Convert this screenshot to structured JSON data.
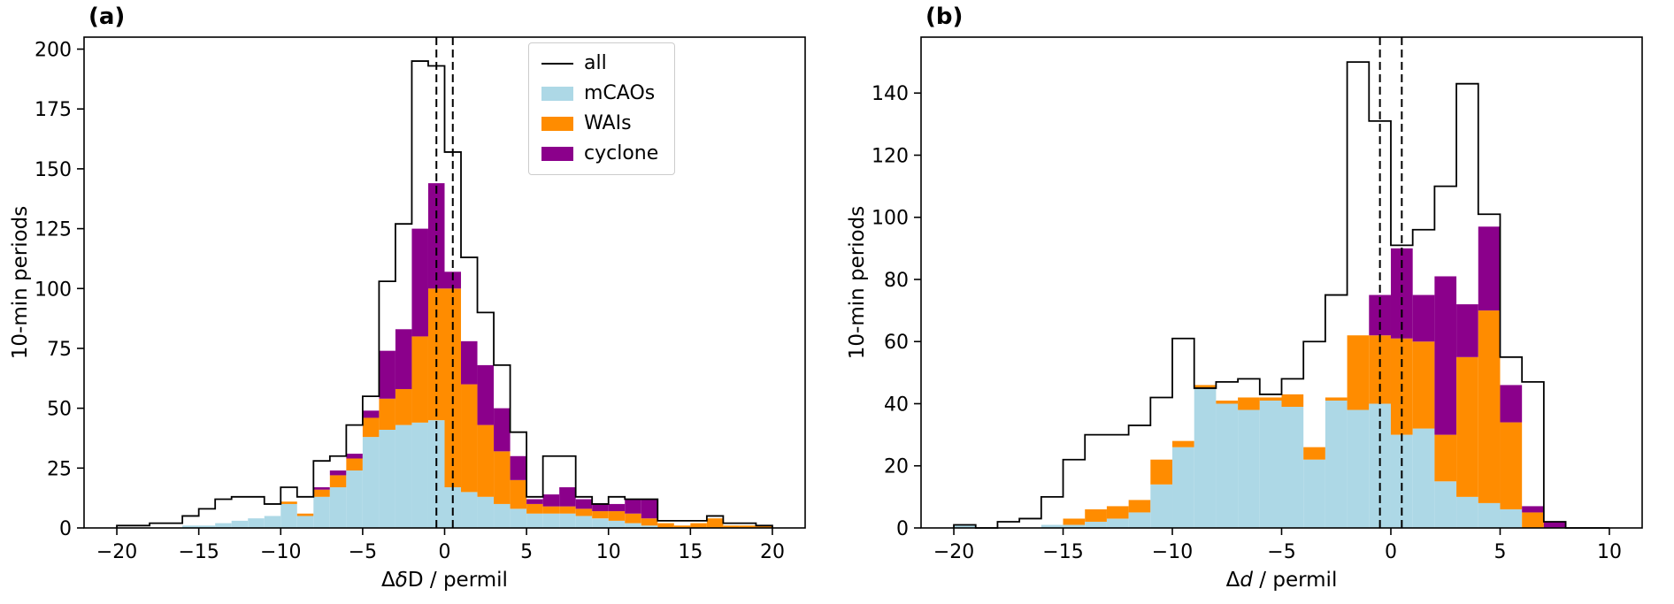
{
  "figure": {
    "background": "#ffffff"
  },
  "legend": {
    "entries": [
      {
        "label": "all",
        "type": "line",
        "color": "#000000"
      },
      {
        "label": "mCAOs",
        "type": "patch",
        "color": "#add8e6"
      },
      {
        "label": "WAIs",
        "type": "patch",
        "color": "#ff8c00"
      },
      {
        "label": "cyclone",
        "type": "patch",
        "color": "#8b008b"
      }
    ]
  },
  "chart_data": [
    {
      "type": "bar",
      "variant": "stacked_step_histogram",
      "panel_label": "(a)",
      "xlabel": "ΔδD / permil",
      "xlabel_parts": [
        {
          "text": "Δ"
        },
        {
          "text": "δ",
          "italic": true
        },
        {
          "text": "D / permil"
        }
      ],
      "ylabel": "10-min periods",
      "xlim": [
        -22,
        22
      ],
      "ylim": [
        0,
        205
      ],
      "xticks": [
        -20,
        -15,
        -10,
        -5,
        0,
        5,
        10,
        15,
        20
      ],
      "yticks": [
        0,
        25,
        50,
        75,
        100,
        125,
        150,
        175,
        200
      ],
      "bin_start": -20,
      "bin_width": 1,
      "dashed_lines_x": [
        -0.5,
        0.5
      ],
      "outline_series": {
        "name": "all",
        "color": "#000000",
        "values": [
          1,
          1,
          2,
          2,
          5,
          8,
          12,
          13,
          13,
          10,
          17,
          13,
          28,
          30,
          43,
          55,
          103,
          127,
          195,
          193,
          157,
          113,
          90,
          68,
          40,
          13,
          30,
          30,
          13,
          10,
          13,
          12,
          12,
          3,
          3,
          3,
          5,
          2,
          2,
          1
        ]
      },
      "stacked_series": [
        {
          "name": "mCAOs",
          "color": "#add8e6",
          "values": [
            0,
            0,
            0,
            0,
            1,
            1,
            2,
            3,
            4,
            5,
            10,
            5,
            13,
            17,
            24,
            38,
            41,
            43,
            44,
            45,
            17,
            15,
            13,
            10,
            8,
            6,
            6,
            6,
            5,
            4,
            3,
            2,
            1,
            0,
            0,
            0,
            0,
            0,
            0,
            0
          ]
        },
        {
          "name": "WAIs",
          "color": "#ff8c00",
          "values": [
            0,
            0,
            0,
            0,
            0,
            0,
            0,
            0,
            0,
            0,
            1,
            1,
            3,
            5,
            5,
            8,
            13,
            15,
            36,
            55,
            83,
            45,
            30,
            22,
            12,
            4,
            3,
            3,
            3,
            3,
            4,
            4,
            3,
            2,
            1,
            2,
            4,
            1,
            1,
            1
          ]
        },
        {
          "name": "cyclone",
          "color": "#8b008b",
          "values": [
            0,
            0,
            0,
            0,
            0,
            0,
            0,
            0,
            0,
            0,
            0,
            0,
            1,
            2,
            2,
            3,
            20,
            25,
            45,
            44,
            7,
            18,
            25,
            18,
            10,
            2,
            5,
            8,
            4,
            3,
            3,
            6,
            8,
            0,
            0,
            0,
            0,
            0,
            0,
            0
          ]
        }
      ]
    },
    {
      "type": "bar",
      "variant": "stacked_step_histogram",
      "panel_label": "(b)",
      "xlabel": "Δd / permil",
      "xlabel_parts": [
        {
          "text": "Δ"
        },
        {
          "text": "d",
          "italic": true
        },
        {
          "text": " / permil"
        }
      ],
      "ylabel": "10-min periods",
      "xlim": [
        -21.5,
        11.5
      ],
      "ylim": [
        0,
        158
      ],
      "xticks": [
        -20,
        -15,
        -10,
        -5,
        0,
        5,
        10
      ],
      "yticks": [
        0,
        20,
        40,
        60,
        80,
        100,
        120,
        140
      ],
      "bin_start": -20,
      "bin_width": 1,
      "dashed_lines_x": [
        -0.5,
        0.5
      ],
      "outline_series": {
        "name": "all",
        "color": "#000000",
        "values": [
          1,
          0,
          2,
          3,
          10,
          22,
          30,
          30,
          33,
          42,
          61,
          45,
          47,
          48,
          43,
          48,
          60,
          75,
          150,
          131,
          91,
          96,
          110,
          143,
          101,
          55,
          47,
          2,
          0,
          0
        ]
      },
      "stacked_series": [
        {
          "name": "mCAOs",
          "color": "#add8e6",
          "values": [
            1,
            0,
            0,
            0,
            1,
            1,
            2,
            3,
            5,
            14,
            26,
            45,
            40,
            38,
            41,
            39,
            22,
            41,
            38,
            40,
            30,
            32,
            15,
            10,
            8,
            6,
            0,
            0,
            0,
            0
          ]
        },
        {
          "name": "WAIs",
          "color": "#ff8c00",
          "values": [
            0,
            0,
            0,
            0,
            0,
            2,
            4,
            4,
            4,
            8,
            2,
            1,
            1,
            4,
            1,
            4,
            4,
            1,
            24,
            22,
            31,
            28,
            15,
            45,
            62,
            28,
            5,
            0,
            0,
            0
          ]
        },
        {
          "name": "cyclone",
          "color": "#8b008b",
          "values": [
            0,
            0,
            0,
            0,
            0,
            0,
            0,
            0,
            0,
            0,
            0,
            0,
            0,
            0,
            0,
            0,
            0,
            0,
            0,
            13,
            29,
            15,
            51,
            17,
            27,
            12,
            2,
            2,
            0,
            0
          ]
        }
      ]
    }
  ]
}
